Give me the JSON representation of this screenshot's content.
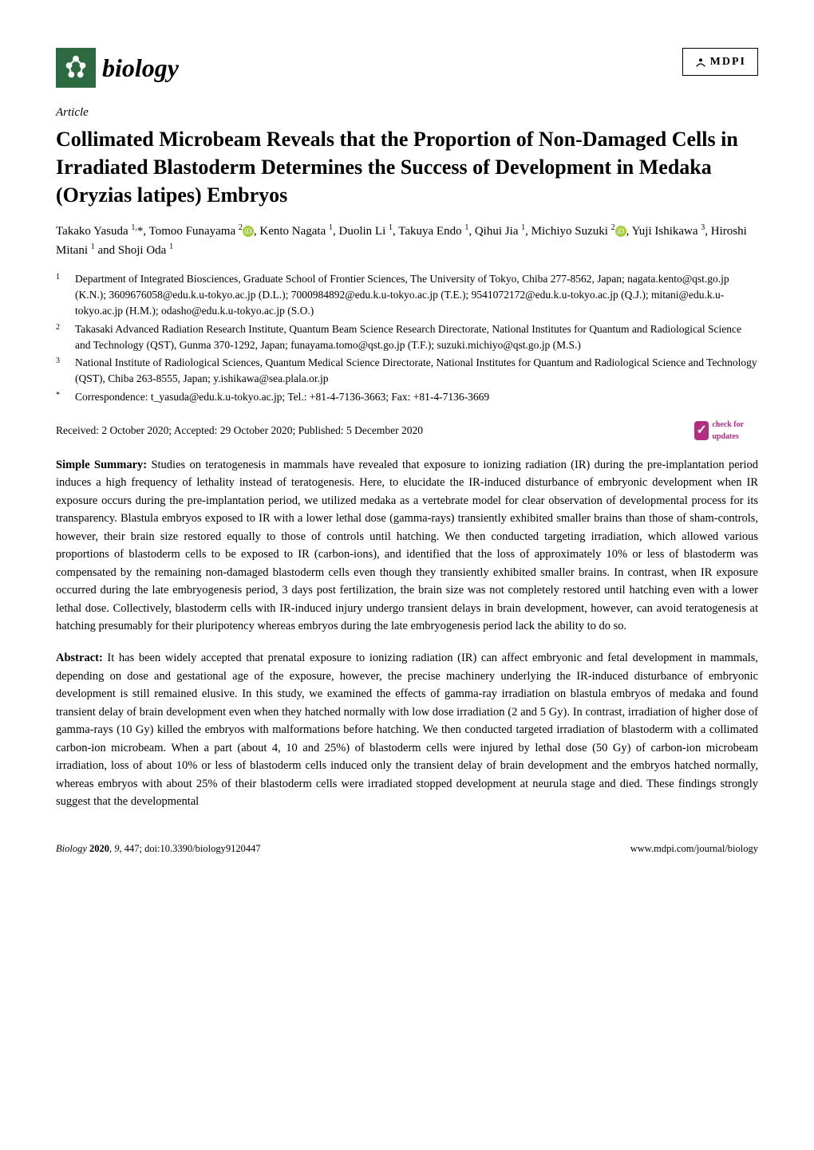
{
  "journal": {
    "name": "biology",
    "logo_bg": "#2b6b3f",
    "publisher": "MDPI"
  },
  "article_type": "Article",
  "title": "Collimated Microbeam Reveals that the Proportion of Non-Damaged Cells in Irradiated Blastoderm Determines the Success of Development in Medaka (Oryzias latipes) Embryos",
  "authors_html": "Takako Yasuda <sup>1,</sup>*, Tomoo Funayama <sup>2</sup><span class='orcid-icon'>iD</span>, Kento Nagata <sup>1</sup>, Duolin Li <sup>1</sup>, Takuya Endo <sup>1</sup>, Qihui Jia <sup>1</sup>, Michiyo Suzuki <sup>2</sup><span class='orcid-icon'>iD</span>, Yuji Ishikawa <sup>3</sup>, Hiroshi Mitani <sup>1</sup> and Shoji Oda <sup>1</sup>",
  "affiliations": [
    {
      "num": "1",
      "text": "Department of Integrated Biosciences, Graduate School of Frontier Sciences, The University of Tokyo, Chiba 277-8562, Japan; nagata.kento@qst.go.jp (K.N.); 3609676058@edu.k.u-tokyo.ac.jp (D.L.); 7000984892@edu.k.u-tokyo.ac.jp (T.E.); 9541072172@edu.k.u-tokyo.ac.jp (Q.J.); mitani@edu.k.u-tokyo.ac.jp (H.M.); odasho@edu.k.u-tokyo.ac.jp (S.O.)"
    },
    {
      "num": "2",
      "text": "Takasaki Advanced Radiation Research Institute, Quantum Beam Science Research Directorate, National Institutes for Quantum and Radiological Science and Technology (QST), Gunma 370-1292, Japan; funayama.tomo@qst.go.jp (T.F.); suzuki.michiyo@qst.go.jp (M.S.)"
    },
    {
      "num": "3",
      "text": "National Institute of Radiological Sciences, Quantum Medical Science Directorate, National Institutes for Quantum and Radiological Science and Technology (QST), Chiba 263-8555, Japan; y.ishikawa@sea.plala.or.jp"
    },
    {
      "num": "*",
      "text": "Correspondence: t_yasuda@edu.k.u-tokyo.ac.jp; Tel.: +81-4-7136-3663; Fax: +81-4-7136-3669"
    }
  ],
  "dates": "Received: 2 October 2020; Accepted: 29 October 2020; Published: 5 December 2020",
  "check_updates": "check for updates",
  "simple_summary": {
    "label": "Simple Summary:",
    "text": "Studies on teratogenesis in mammals have revealed that exposure to ionizing radiation (IR) during the pre-implantation period induces a high frequency of lethality instead of teratogenesis. Here, to elucidate the IR-induced disturbance of embryonic development when IR exposure occurs during the pre-implantation period, we utilized medaka as a vertebrate model for clear observation of developmental process for its transparency. Blastula embryos exposed to IR with a lower lethal dose (gamma-rays) transiently exhibited smaller brains than those of sham-controls, however, their brain size restored equally to those of controls until hatching. We then conducted targeting irradiation, which allowed various proportions of blastoderm cells to be exposed to IR (carbon-ions), and identified that the loss of approximately 10% or less of blastoderm was compensated by the remaining non-damaged blastoderm cells even though they transiently exhibited smaller brains. In contrast, when IR exposure occurred during the late embryogenesis period, 3 days post fertilization, the brain size was not completely restored until hatching even with a lower lethal dose. Collectively, blastoderm cells with IR-induced injury undergo transient delays in brain development, however, can avoid teratogenesis at hatching presumably for their pluripotency whereas embryos during the late embryogenesis period lack the ability to do so."
  },
  "abstract": {
    "label": "Abstract:",
    "text": "It has been widely accepted that prenatal exposure to ionizing radiation (IR) can affect embryonic and fetal development in mammals, depending on dose and gestational age of the exposure, however, the precise machinery underlying the IR-induced disturbance of embryonic development is still remained elusive. In this study, we examined the effects of gamma-ray irradiation on blastula embryos of medaka and found transient delay of brain development even when they hatched normally with low dose irradiation (2 and 5 Gy). In contrast, irradiation of higher dose of gamma-rays (10 Gy) killed the embryos with malformations before hatching. We then conducted targeted irradiation of blastoderm with a collimated carbon-ion microbeam. When a part (about 4, 10 and 25%) of blastoderm cells were injured by lethal dose (50 Gy) of carbon-ion microbeam irradiation, loss of about 10% or less of blastoderm cells induced only the transient delay of brain development and the embryos hatched normally, whereas embryos with about 25% of their blastoderm cells were irradiated stopped development at neurula stage and died. These findings strongly suggest that the developmental"
  },
  "footer": {
    "left": "Biology 2020, 9, 447; doi:10.3390/biology9120447",
    "right": "www.mdpi.com/journal/biology"
  },
  "colors": {
    "text": "#000000",
    "bg": "#ffffff",
    "logo_green": "#2b6b3f",
    "orcid": "#a6ce39",
    "check_pink": "#b32e7e"
  }
}
